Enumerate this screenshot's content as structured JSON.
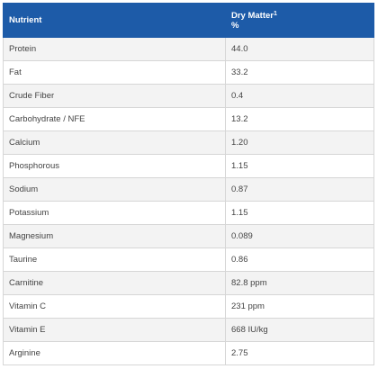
{
  "header": {
    "nutrient": "Nutrient",
    "dry_matter": "Dry Matter",
    "footnote": "1",
    "unit": "%"
  },
  "table": {
    "rows": [
      [
        "Protein",
        "44.0"
      ],
      [
        "Fat",
        "33.2"
      ],
      [
        "Crude Fiber",
        "0.4"
      ],
      [
        "Carbohydrate / NFE",
        "13.2"
      ],
      [
        "Calcium",
        "1.20"
      ],
      [
        "Phosphorous",
        "1.15"
      ],
      [
        "Sodium",
        "0.87"
      ],
      [
        "Potassium",
        "1.15"
      ],
      [
        "Magnesium",
        "0.089"
      ],
      [
        "Taurine",
        "0.86"
      ],
      [
        "Carnitine",
        "82.8 ppm"
      ],
      [
        "Vitamin C",
        "231 ppm"
      ],
      [
        "Vitamin E",
        "668 IU/kg"
      ],
      [
        "Arginine",
        "2.75"
      ]
    ]
  }
}
